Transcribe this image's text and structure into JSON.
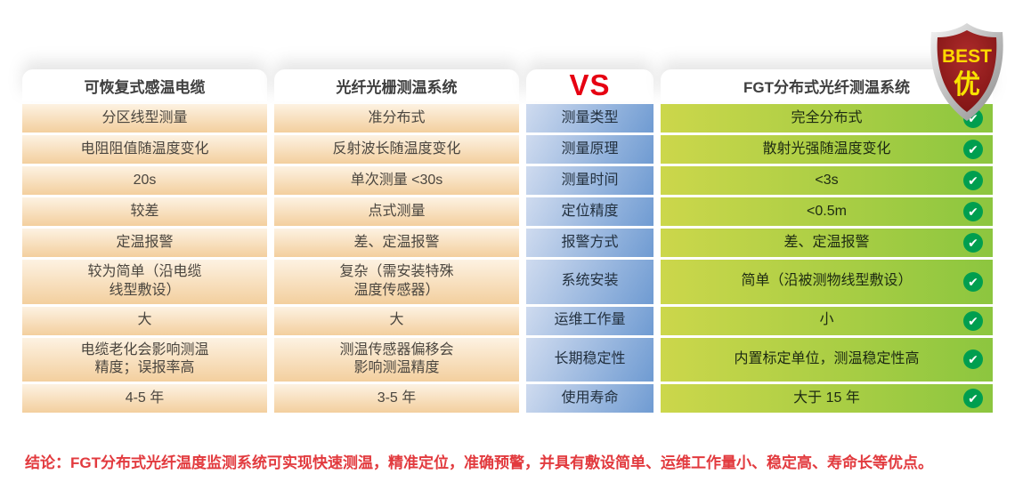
{
  "badge": {
    "line1": "BEST",
    "line2": "优"
  },
  "table": {
    "headers": {
      "col1": "可恢复式感温电缆",
      "col2": "光纤光栅测温系统",
      "vs": "VS",
      "col4": "FGT分布式光纤测温系统"
    },
    "rows": [
      {
        "label": "测量类型",
        "col1": "分区线型测量",
        "col2": "准分布式",
        "col4": "完全分布式"
      },
      {
        "label": "测量原理",
        "col1": "电阻阻值随温度变化",
        "col2": "反射波长随温度变化",
        "col4": "散射光强随温度变化"
      },
      {
        "label": "测量时间",
        "col1": "20s",
        "col2": "单次测量 <30s",
        "col4": "<3s"
      },
      {
        "label": "定位精度",
        "col1": "较差",
        "col2": "点式测量",
        "col4": "<0.5m"
      },
      {
        "label": "报警方式",
        "col1": "定温报警",
        "col2": "差、定温报警",
        "col4": "差、定温报警"
      },
      {
        "label": "系统安装",
        "col1": "较为简单（沿电缆\n线型敷设）",
        "col2": "复杂（需安装特殊\n温度传感器）",
        "col4": "简单（沿被测物线型敷设）"
      },
      {
        "label": "运维工作量",
        "col1": "大",
        "col2": "大",
        "col4": "小"
      },
      {
        "label": "长期稳定性",
        "col1": "电缆老化会影响测温\n精度；误报率高",
        "col2": "测温传感器偏移会\n影响测温精度",
        "col4": "内置标定单位，测温稳定性高"
      },
      {
        "label": "使用寿命",
        "col1": "4-5 年",
        "col2": "3-5 年",
        "col4": "大于 15 年"
      }
    ],
    "check_icon": "✔"
  },
  "conclusion": "结论：FGT分布式光纤温度监测系统可实现快速测温，精准定位，准确预警，并具有敷设简单、运维工作量小、稳定高、寿命长等优点。",
  "colors": {
    "orange_row": "#f3cf9e",
    "blue_label": "#6f9bd2",
    "green_light": "#ccd74b",
    "green_dark": "#8cc63f",
    "check_green": "#009e4f",
    "vs_red": "#e60012",
    "conclusion_red": "#e23a3e",
    "badge_red": "#8f1d1d",
    "badge_yellow": "#ffd800"
  }
}
